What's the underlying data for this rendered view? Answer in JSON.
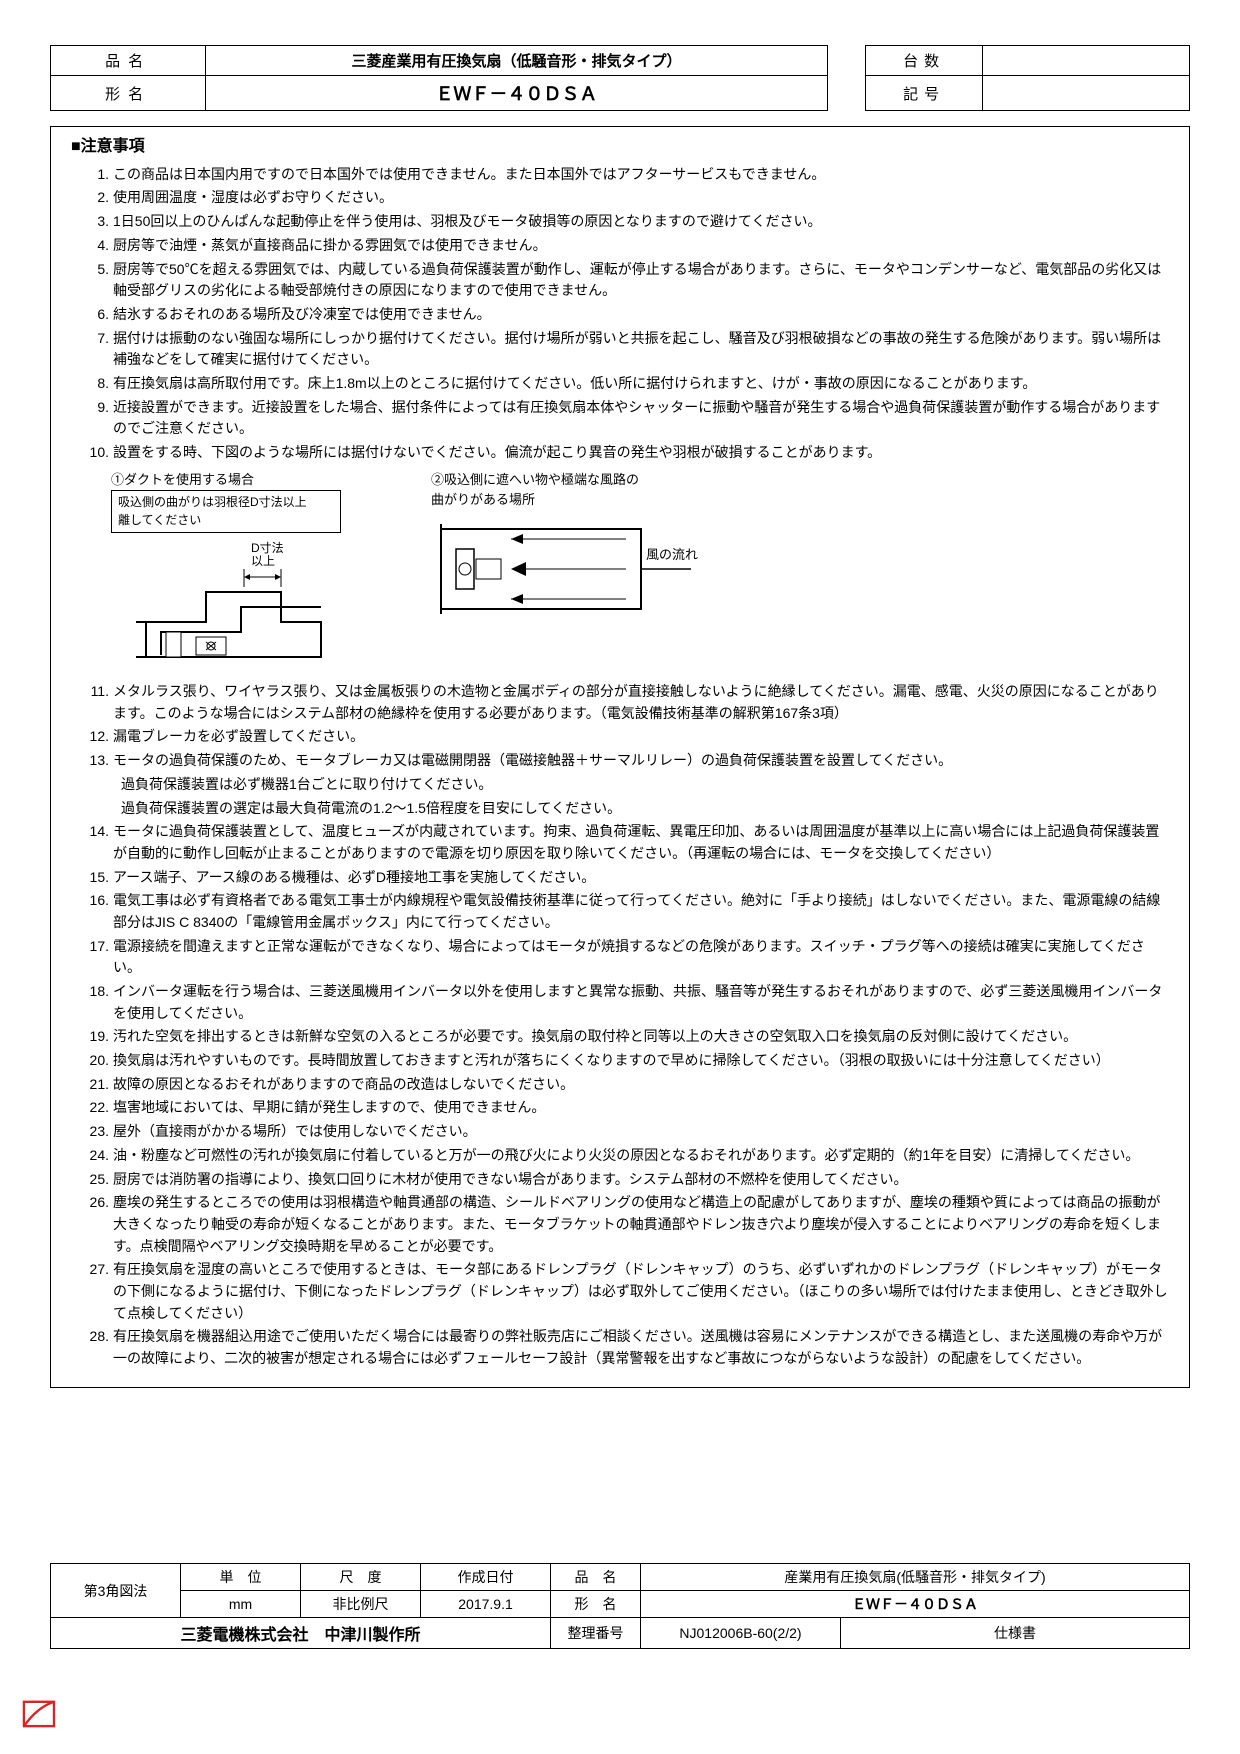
{
  "header": {
    "product_label": "品名",
    "product_value": "三菱産業用有圧換気扇（低騒音形・排気タイプ）",
    "model_label": "形名",
    "model_value": "ＥＷＦ－４０ＤＳＡ",
    "qty_label": "台数",
    "qty_value": "",
    "mark_label": "記号",
    "mark_value": ""
  },
  "section_title": "■注意事項",
  "items": [
    {
      "n": "1.",
      "t": "この商品は日本国内用ですので日本国外では使用できません。また日本国外ではアフターサービスもできません。"
    },
    {
      "n": "2.",
      "t": "使用周囲温度・湿度は必ずお守りください。"
    },
    {
      "n": "3.",
      "t": "1日50回以上のひんぱんな起動停止を伴う使用は、羽根及びモータ破損等の原因となりますので避けてください。"
    },
    {
      "n": "4.",
      "t": "厨房等で油煙・蒸気が直接商品に掛かる雰囲気では使用できません。"
    },
    {
      "n": "5.",
      "t": "厨房等で50℃を超える雰囲気では、内蔵している過負荷保護装置が動作し、運転が停止する場合があります。さらに、モータやコンデンサーなど、電気部品の劣化又は軸受部グリスの劣化による軸受部焼付きの原因になりますので使用できません。"
    },
    {
      "n": "6.",
      "t": "結氷するおそれのある場所及び冷凍室では使用できません。"
    },
    {
      "n": "7.",
      "t": "据付けは振動のない強固な場所にしっかり据付けてください。据付け場所が弱いと共振を起こし、騒音及び羽根破損などの事故の発生する危険があります。弱い場所は補強などをして確実に据付けてください。"
    },
    {
      "n": "8.",
      "t": "有圧換気扇は高所取付用です。床上1.8m以上のところに据付けてください。低い所に据付けられますと、けが・事故の原因になることがあります。"
    },
    {
      "n": "9.",
      "t": "近接設置ができます。近接設置をした場合、据付条件によっては有圧換気扇本体やシャッターに振動や騒音が発生する場合や過負荷保護装置が動作する場合がありますのでご注意ください。"
    },
    {
      "n": "10.",
      "t": "設置をする時、下図のような場所には据付けないでください。偏流が起こり異音の発生や羽根が破損することがあります。"
    }
  ],
  "diag": {
    "col1_line1": "①ダクトを使用する場合",
    "col1_box": "吸込側の曲がりは羽根径D寸法以上\n離してください",
    "col1_dim": "D寸法\n以上",
    "col2_line1": "②吸込側に遮へい物や極端な風路の",
    "col2_line2": "曲がりがある場所",
    "col2_wind": "風の流れ"
  },
  "items2": [
    {
      "n": "11.",
      "t": "メタルラス張り、ワイヤラス張り、又は金属板張りの木造物と金属ボディの部分が直接接触しないように絶縁してください。漏電、感電、火災の原因になることがあります。このような場合にはシステム部材の絶縁枠を使用する必要があります。（電気設備技術基準の解釈第167条3項）"
    },
    {
      "n": "12.",
      "t": "漏電ブレーカを必ず設置してください。"
    },
    {
      "n": "13.",
      "t": "モータの過負荷保護のため、モータブレーカ又は電磁開閉器（電磁接触器＋サーマルリレー）の過負荷保護装置を設置してください。"
    }
  ],
  "sub13a": "過負荷保護装置は必ず機器1台ごとに取り付けてください。",
  "sub13b": "過負荷保護装置の選定は最大負荷電流の1.2～1.5倍程度を目安にしてください。",
  "items3": [
    {
      "n": "14.",
      "t": "モータに過負荷保護装置として、温度ヒューズが内蔵されています。拘束、過負荷運転、異電圧印加、あるいは周囲温度が基準以上に高い場合には上記過負荷保護装置が自動的に動作し回転が止まることがありますので電源を切り原因を取り除いてください。（再運転の場合には、モータを交換してください）"
    },
    {
      "n": "15.",
      "t": "アース端子、アース線のある機種は、必ずD種接地工事を実施してください。"
    },
    {
      "n": "16.",
      "t": "電気工事は必ず有資格者である電気工事士が内線規程や電気設備技術基準に従って行ってください。絶対に「手より接続」はしないでください。また、電源電線の結線部分はJIS C 8340の「電線管用金属ボックス」内にて行ってください。"
    },
    {
      "n": "17.",
      "t": "電源接続を間違えますと正常な運転ができなくなり、場合によってはモータが焼損するなどの危険があります。スイッチ・プラグ等への接続は確実に実施してください。"
    },
    {
      "n": "18.",
      "t": "インバータ運転を行う場合は、三菱送風機用インバータ以外を使用しますと異常な振動、共振、騒音等が発生するおそれがありますので、必ず三菱送風機用インバータを使用してください。"
    },
    {
      "n": "19.",
      "t": "汚れた空気を排出するときは新鮮な空気の入るところが必要です。換気扇の取付枠と同等以上の大きさの空気取入口を換気扇の反対側に設けてください。"
    },
    {
      "n": "20.",
      "t": "換気扇は汚れやすいものです。長時間放置しておきますと汚れが落ちにくくなりますので早めに掃除してください。（羽根の取扱いには十分注意してください）"
    },
    {
      "n": "21.",
      "t": "故障の原因となるおそれがありますので商品の改造はしないでください。"
    },
    {
      "n": "22.",
      "t": "塩害地域においては、早期に錆が発生しますので、使用できません。"
    },
    {
      "n": "23.",
      "t": "屋外（直接雨がかかる場所）では使用しないでください。"
    },
    {
      "n": "24.",
      "t": "油・粉塵など可燃性の汚れが換気扇に付着していると万が一の飛び火により火災の原因となるおそれがあります。必ず定期的（約1年を目安）に清掃してください。"
    },
    {
      "n": "25.",
      "t": "厨房では消防署の指導により、換気口回りに木材が使用できない場合があります。システム部材の不燃枠を使用してください。"
    },
    {
      "n": "26.",
      "t": "塵埃の発生するところでの使用は羽根構造や軸貫通部の構造、シールドベアリングの使用など構造上の配慮がしてありますが、塵埃の種類や質によっては商品の振動が大きくなったり軸受の寿命が短くなることがあります。また、モータブラケットの軸貫通部やドレン抜き穴より塵埃が侵入することによりベアリングの寿命を短くします。点検間隔やベアリング交換時期を早めることが必要です。"
    },
    {
      "n": "27.",
      "t": "有圧換気扇を湿度の高いところで使用するときは、モータ部にあるドレンプラグ（ドレンキャップ）のうち、必ずいずれかのドレンプラグ（ドレンキャップ）がモータの下側になるように据付け、下側になったドレンプラグ（ドレンキャップ）は必ず取外してご使用ください。（ほこりの多い場所では付けたまま使用し、ときどき取外して点検してください）"
    },
    {
      "n": "28.",
      "t": "有圧換気扇を機器組込用途でご使用いただく場合には最寄りの弊社販売店にご相談ください。送風機は容易にメンテナンスができる構造とし、また送風機の寿命や万が一の故障により、二次的被害が想定される場合には必ずフェールセーフ設計（異常警報を出すなど事故につながらないような設計）の配慮をしてください。"
    }
  ],
  "footer": {
    "proj": "第3角図法",
    "unit_h": "単　位",
    "scale_h": "尺　度",
    "date_h": "作成日付",
    "unit": "mm",
    "scale": "非比例尺",
    "date": "2017.9.1",
    "name_h": "品　名",
    "name_v": "産業用有圧換気扇(低騒音形・排気タイプ)",
    "model_h": "形　名",
    "model_v": "ＥＷＦ－４０ＤＳＡ",
    "company": "三菱電機株式会社　中津川製作所",
    "docno_h": "整理番号",
    "docno_v": "NJ012006B-60(2/2)",
    "doctype": "仕様書"
  },
  "colors": {
    "red": "#d22"
  }
}
